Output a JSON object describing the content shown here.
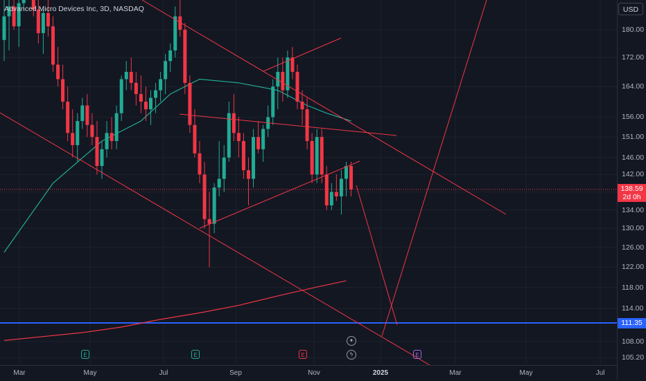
{
  "header": {
    "title": "Advanced Micro Devices Inc, 3D, NASDAQ",
    "currency": "USD"
  },
  "price_axis": {
    "labels": [
      "180.00",
      "172.00",
      "164.00",
      "156.00",
      "151.00",
      "146.00",
      "142.00",
      "138.00",
      "134.00",
      "130.00",
      "126.00",
      "122.00",
      "118.00",
      "114.00",
      "108.00",
      "105.20"
    ],
    "last_price": "138.59",
    "countdown": "2d 0h",
    "hline_value": "111.35"
  },
  "time_axis": {
    "labels": [
      "Mar",
      "May",
      "Jul",
      "Sep",
      "Nov",
      "2025",
      "Mar",
      "May",
      "Jul"
    ]
  },
  "colors": {
    "up": "#22ab94",
    "down": "#f23645",
    "background": "#131722",
    "grid": "#1e222d",
    "drawing": "#f23645",
    "moving_average_short": "#22ab94",
    "moving_average_long": "#f23645",
    "hline": "#2962ff",
    "earnings_badge_past": "#22ab94",
    "earnings_badge_miss": "#f23645",
    "earnings_badge_future": "#9c6ade"
  },
  "events": [
    {
      "kind": "earnings",
      "letter": "E",
      "icon": "earnings-icon",
      "result": "past",
      "date_index": 0
    },
    {
      "kind": "earnings",
      "letter": "E",
      "icon": "earnings-icon",
      "result": "past",
      "date_index": 1
    },
    {
      "kind": "earnings",
      "letter": "E",
      "icon": "earnings-icon",
      "result": "miss",
      "date_index": 2
    },
    {
      "kind": "earnings",
      "letter": "E",
      "icon": "earnings-icon",
      "result": "future",
      "date_index": 3
    },
    {
      "kind": "dividend",
      "letter": "✦",
      "icon": "sparkle-icon"
    },
    {
      "kind": "split",
      "letter": "ϟ",
      "icon": "lightning-icon"
    }
  ],
  "chart_data": {
    "type": "candlestick",
    "title": "Advanced Micro Devices Inc, 3D, NASDAQ",
    "xlabel": "",
    "ylabel": "",
    "yscale": "log",
    "ylim": [
      104,
      197
    ],
    "grid": true,
    "x_ticks": [
      "Mar",
      "May",
      "Jul",
      "Sep",
      "Nov",
      "2025",
      "Mar",
      "May",
      "Jul"
    ],
    "y_ticks": [
      180,
      172,
      164,
      156,
      151,
      146,
      142,
      138,
      134,
      130,
      126,
      122,
      118,
      114,
      108,
      105.2
    ],
    "candles": [
      [
        177,
        191,
        171,
        184
      ],
      [
        184,
        197,
        174,
        187
      ],
      [
        187,
        195,
        180,
        181
      ],
      [
        181,
        190,
        175,
        188
      ],
      [
        188,
        197,
        186,
        196
      ],
      [
        196,
        199,
        190,
        192
      ],
      [
        192,
        196,
        184,
        186
      ],
      [
        186,
        190,
        176,
        179
      ],
      [
        179,
        186,
        173,
        185
      ],
      [
        185,
        189,
        178,
        181
      ],
      [
        181,
        184,
        168,
        170
      ],
      [
        170,
        175,
        164,
        166
      ],
      [
        166,
        170,
        158,
        160
      ],
      [
        160,
        164,
        150,
        152
      ],
      [
        152,
        158,
        146,
        149
      ],
      [
        149,
        157,
        145,
        155
      ],
      [
        155,
        161,
        153,
        159
      ],
      [
        159,
        162,
        151,
        154
      ],
      [
        154,
        157,
        149,
        151
      ],
      [
        151,
        155,
        142,
        144
      ],
      [
        144,
        150,
        141,
        148
      ],
      [
        148,
        155,
        146,
        152
      ],
      [
        152,
        156,
        148,
        150
      ],
      [
        150,
        159,
        148,
        157
      ],
      [
        157,
        167,
        155,
        166
      ],
      [
        166,
        171,
        163,
        168
      ],
      [
        168,
        172,
        163,
        165
      ],
      [
        165,
        168,
        159,
        162
      ],
      [
        162,
        167,
        157,
        160
      ],
      [
        160,
        164,
        155,
        158
      ],
      [
        158,
        163,
        154,
        161
      ],
      [
        161,
        165,
        157,
        163
      ],
      [
        163,
        168,
        160,
        166
      ],
      [
        166,
        173,
        162,
        171
      ],
      [
        171,
        176,
        168,
        174
      ],
      [
        174,
        187,
        172,
        184
      ],
      [
        184,
        190,
        178,
        180
      ],
      [
        180,
        182,
        162,
        165
      ],
      [
        165,
        167,
        152,
        154
      ],
      [
        154,
        158,
        146,
        147
      ],
      [
        147,
        150,
        140,
        142
      ],
      [
        142,
        145,
        130,
        132
      ],
      [
        132,
        138,
        122,
        131
      ],
      [
        131,
        140,
        129,
        139
      ],
      [
        139,
        150,
        137,
        141
      ],
      [
        141,
        149,
        138,
        146
      ],
      [
        146,
        160,
        145,
        157
      ],
      [
        157,
        162,
        150,
        152
      ],
      [
        152,
        156,
        146,
        150
      ],
      [
        150,
        152,
        141,
        143
      ],
      [
        143,
        146,
        135,
        141
      ],
      [
        141,
        153,
        139,
        151
      ],
      [
        151,
        155,
        147,
        148
      ],
      [
        148,
        154,
        145,
        153
      ],
      [
        153,
        159,
        151,
        156
      ],
      [
        156,
        166,
        154,
        164
      ],
      [
        164,
        172,
        158,
        168
      ],
      [
        168,
        172,
        160,
        163
      ],
      [
        163,
        174,
        161,
        172
      ],
      [
        172,
        175,
        166,
        168
      ],
      [
        168,
        170,
        158,
        160
      ],
      [
        160,
        163,
        154,
        158
      ],
      [
        158,
        161,
        148,
        150
      ],
      [
        150,
        152,
        140,
        142
      ],
      [
        142,
        153,
        140,
        151
      ],
      [
        151,
        153,
        140,
        142
      ],
      [
        142,
        144,
        134,
        135
      ],
      [
        135,
        140,
        134,
        138
      ],
      [
        138,
        142,
        136,
        137
      ],
      [
        137,
        143,
        133,
        141
      ],
      [
        141,
        145,
        137,
        144
      ],
      [
        144,
        145,
        137,
        138.59
      ]
    ],
    "moving_average_50": [
      [
        0,
        125
      ],
      [
        10,
        140
      ],
      [
        20,
        150
      ],
      [
        28,
        155
      ],
      [
        34,
        162
      ],
      [
        40,
        166
      ],
      [
        48,
        165
      ],
      [
        56,
        163
      ],
      [
        62,
        159
      ],
      [
        66,
        157
      ],
      [
        71,
        155
      ]
    ],
    "moving_average_200": [
      [
        0,
        108.2
      ],
      [
        8,
        108.9
      ],
      [
        16,
        109.6
      ],
      [
        24,
        110.6
      ],
      [
        32,
        112.0
      ],
      [
        40,
        113.2
      ],
      [
        48,
        114.6
      ],
      [
        56,
        116.4
      ],
      [
        64,
        118.1
      ],
      [
        70,
        119.3
      ]
    ],
    "horizontal_line": 111.35,
    "last_price": 138.59
  }
}
